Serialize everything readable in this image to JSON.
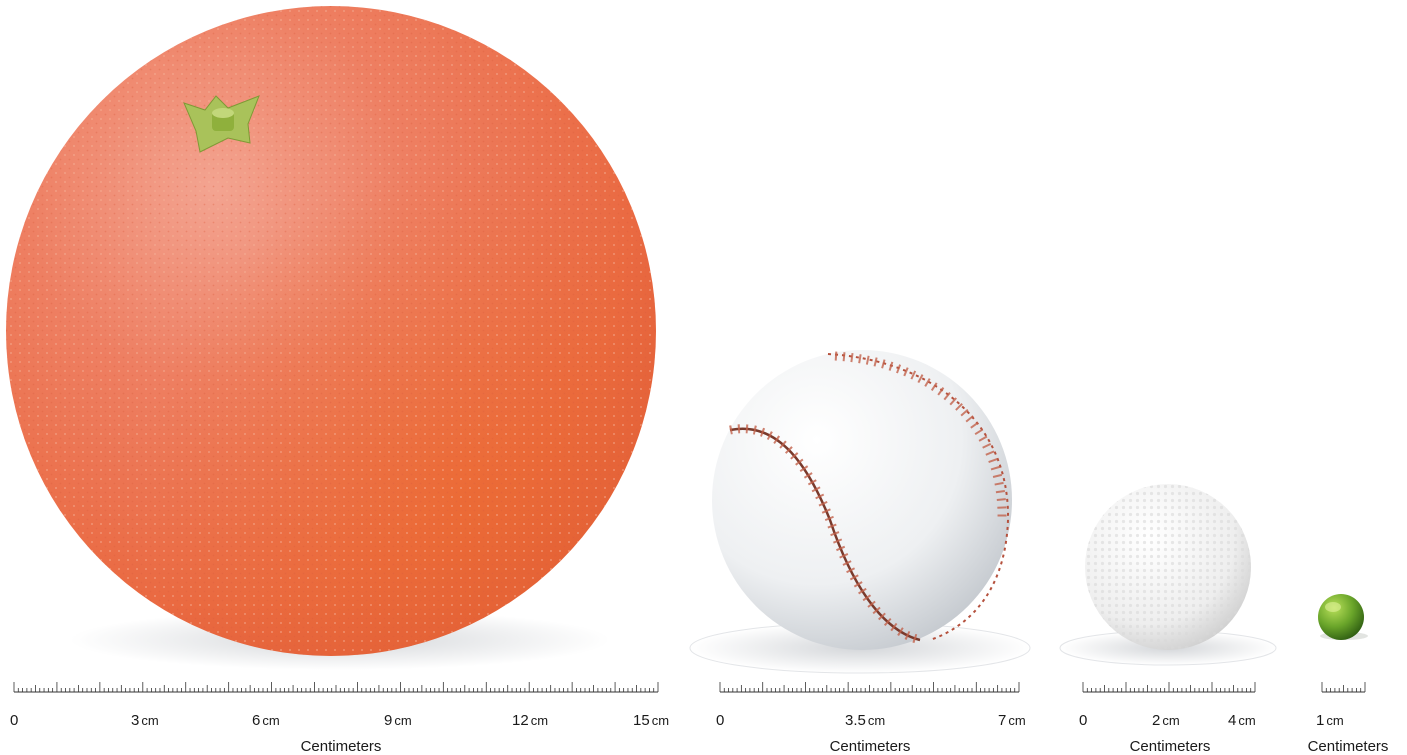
{
  "objects": [
    {
      "name": "grapefruit",
      "icon": "grapefruit-illustration",
      "color": "#ee6e4c"
    },
    {
      "name": "baseball",
      "icon": "baseball-illustration",
      "color": "#f2f2f2",
      "stitch_color": "#b5513d"
    },
    {
      "name": "golf-ball",
      "icon": "golf-ball-illustration",
      "color": "#f4f4f4"
    },
    {
      "name": "pea",
      "icon": "pea-illustration",
      "color": "#6aa52a"
    }
  ],
  "rulers": [
    {
      "id": "grapefruit",
      "title": "Centimeters",
      "max_cm": 15,
      "labels": [
        {
          "num": "0",
          "unit": ""
        },
        {
          "num": "3",
          "unit": "cm"
        },
        {
          "num": "6",
          "unit": "cm"
        },
        {
          "num": "9",
          "unit": "cm"
        },
        {
          "num": "12",
          "unit": "cm"
        },
        {
          "num": "15",
          "unit": "cm"
        }
      ]
    },
    {
      "id": "baseball",
      "title": "Centimeters",
      "max_cm": 7,
      "labels": [
        {
          "num": "0",
          "unit": ""
        },
        {
          "num": "3.5",
          "unit": "cm"
        },
        {
          "num": "7",
          "unit": "cm"
        }
      ]
    },
    {
      "id": "golf",
      "title": "Centimeters",
      "max_cm": 4,
      "labels": [
        {
          "num": "0",
          "unit": ""
        },
        {
          "num": "2",
          "unit": "cm"
        },
        {
          "num": "4",
          "unit": "cm"
        }
      ]
    },
    {
      "id": "pea",
      "title": "Centimeters",
      "max_cm": 1,
      "labels": [
        {
          "num": "1",
          "unit": "cm"
        }
      ]
    }
  ]
}
